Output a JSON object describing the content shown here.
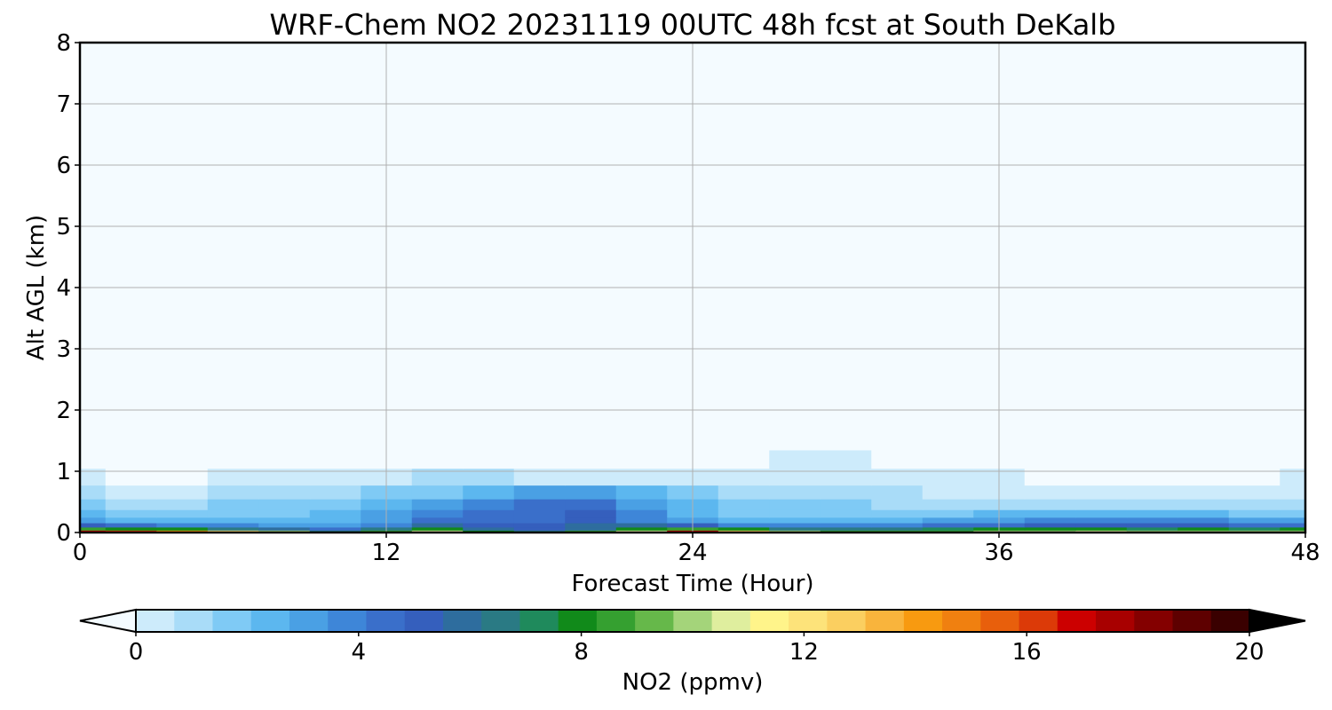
{
  "chart_data": {
    "type": "heatmap",
    "title": "WRF-Chem NO2  20231119 00UTC 48h fcst at South DeKalb",
    "xlabel": "Forecast Time (Hour)",
    "ylabel": "Alt AGL (km)",
    "xlim": [
      0,
      48
    ],
    "ylim": [
      0,
      8
    ],
    "xticks": [
      0,
      12,
      24,
      36,
      48
    ],
    "yticks": [
      0,
      1,
      2,
      3,
      4,
      5,
      6,
      7,
      8
    ],
    "grid": true,
    "colorbar": {
      "label": "NO2  (ppmv)",
      "ticks": [
        0,
        4,
        8,
        12,
        16,
        20
      ],
      "range": [
        0,
        20
      ],
      "extend": "both",
      "colors": [
        "#f4fbff",
        "#cdebfb",
        "#a9dcf8",
        "#7fcaf5",
        "#5cb7ef",
        "#4aa0e4",
        "#3e86d8",
        "#3a6fca",
        "#355fbd",
        "#2e6d9e",
        "#2a7a84",
        "#1f8a5c",
        "#118a1a",
        "#35a030",
        "#66b84a",
        "#a4d47a",
        "#dfee9e",
        "#fff48a",
        "#fde37a",
        "#fbcf60",
        "#f9b43c",
        "#f89a10",
        "#f08010",
        "#e85f0c",
        "#dc3a08",
        "#cc0000",
        "#a80000",
        "#840000",
        "#5e0000",
        "#3a0000",
        "#000000"
      ]
    },
    "x": [
      0,
      2,
      4,
      6,
      8,
      10,
      12,
      14,
      16,
      18,
      20,
      22,
      24,
      26,
      28,
      30,
      32,
      34,
      36,
      38,
      40,
      42,
      44,
      46,
      48
    ],
    "y": [
      0.02,
      0.06,
      0.12,
      0.2,
      0.3,
      0.45,
      0.65,
      0.9,
      1.2,
      1.5,
      2.0
    ],
    "z": [
      [
        17,
        16,
        14,
        12,
        10,
        7,
        9,
        11,
        8,
        7,
        9,
        11,
        17,
        13,
        10,
        9,
        9,
        9,
        10,
        10,
        11,
        10,
        10,
        10,
        10
      ],
      [
        9,
        8.5,
        8,
        7,
        6,
        5,
        7,
        8,
        6,
        5.5,
        6.5,
        8,
        9,
        8,
        7,
        7,
        7,
        7.5,
        8,
        8,
        8.5,
        7.5,
        8,
        7.5,
        8
      ],
      [
        5.5,
        5,
        4.5,
        4,
        3.5,
        3.5,
        4.5,
        6,
        5.5,
        5.5,
        6,
        6.5,
        5.5,
        4.5,
        4.5,
        4.5,
        4.5,
        5,
        5,
        5.5,
        5.5,
        5.5,
        5.5,
        5,
        5
      ],
      [
        3.5,
        3,
        2.8,
        3,
        3,
        3,
        3.8,
        5,
        5,
        5.2,
        5.5,
        4.5,
        3.5,
        3,
        3,
        3,
        3.2,
        3.5,
        3.8,
        4,
        4.2,
        4,
        4,
        3.8,
        3.8
      ],
      [
        2.8,
        2.6,
        2.4,
        2.6,
        2.6,
        2.8,
        3.4,
        4.6,
        5,
        5.2,
        5.4,
        4.2,
        3.2,
        2.6,
        2.6,
        2.4,
        2.4,
        2.6,
        2.8,
        3,
        3.2,
        2.8,
        2.8,
        2.6,
        2.6
      ],
      [
        2,
        1.8,
        1.6,
        2,
        2.2,
        2.4,
        2.8,
        3.8,
        4.6,
        5,
        5.2,
        3.8,
        2.8,
        2.2,
        2.2,
        2,
        1.8,
        1.6,
        1.6,
        1.4,
        1.6,
        1.4,
        1.4,
        1.4,
        1.4
      ],
      [
        1.4,
        1.2,
        1.1,
        1.4,
        1.6,
        1.6,
        2,
        2.6,
        3,
        3.4,
        3.8,
        2.8,
        2,
        1.6,
        1.6,
        1.6,
        1.4,
        1.2,
        1.2,
        1,
        1.2,
        1,
        1,
        1,
        1.1
      ],
      [
        0.8,
        0.6,
        0.6,
        0.8,
        0.8,
        0.8,
        1.2,
        1.6,
        1.4,
        1.2,
        1.2,
        1.2,
        1.2,
        1,
        1.2,
        1.2,
        1,
        0.8,
        0.8,
        0.6,
        0.6,
        0.6,
        0.6,
        0.6,
        0.8
      ],
      [
        0.2,
        0.2,
        0.2,
        0.4,
        0.4,
        0.3,
        0.6,
        0.6,
        0.6,
        0.4,
        0.4,
        0.4,
        0.4,
        0.4,
        0.8,
        0.8,
        0.6,
        0.4,
        0.6,
        0.4,
        0.4,
        0.2,
        0.2,
        0.2,
        0.4
      ],
      [
        0.1,
        0.1,
        0.1,
        0.1,
        0.1,
        0.1,
        0.2,
        0.2,
        0.2,
        0.2,
        0.2,
        0.2,
        0.2,
        0.3,
        0.6,
        0.6,
        0.5,
        0.3,
        0.5,
        0.3,
        0.2,
        0.1,
        0.1,
        0.2,
        0.3
      ],
      [
        0,
        0,
        0,
        0,
        0,
        0,
        0,
        0,
        0,
        0,
        0,
        0,
        0,
        0,
        0.1,
        0.1,
        0.1,
        0.1,
        0.1,
        0,
        0,
        0,
        0,
        0.1,
        0.2
      ]
    ]
  }
}
